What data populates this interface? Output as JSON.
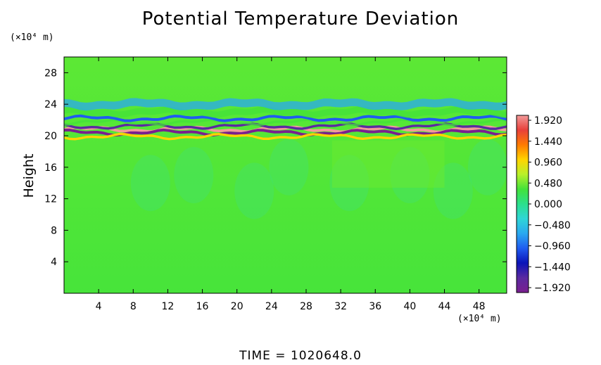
{
  "chart_data": {
    "type": "heatmap",
    "title": "Potential Temperature Deviation",
    "ylabel": "Height",
    "xunit": "(×10⁴ m)",
    "yunit": "(×10⁴ m)",
    "footer": "TIME  =  1020648.0",
    "xlim": [
      0,
      51.2
    ],
    "ylim": [
      0,
      30
    ],
    "xticks": [
      4,
      8,
      12,
      16,
      20,
      24,
      28,
      32,
      36,
      40,
      44,
      48
    ],
    "yticks": [
      4,
      8,
      12,
      16,
      20,
      24,
      28
    ],
    "colorbar": {
      "labels": [
        "1.920",
        "1.440",
        "0.960",
        "0.480",
        "0.000",
        "−0.480",
        "−0.960",
        "−1.440",
        "−1.920"
      ],
      "range": [
        -1.92,
        1.92
      ],
      "colors": [
        "#f29a9a",
        "#e8403a",
        "#ff7b00",
        "#ffd400",
        "#b9f02a",
        "#43e23a",
        "#2be08c",
        "#2fd6d6",
        "#2aa8f0",
        "#1f5cf0",
        "#0b14b8",
        "#5a2aa0",
        "#7a1f8f"
      ]
    },
    "field": {
      "background_value": 0.0,
      "layers": [
        {
          "y_center": 20.8,
          "thickness": 0.35,
          "value": 1.92
        },
        {
          "y_center": 20.4,
          "thickness": 0.35,
          "value": -1.92
        },
        {
          "y_center": 21.2,
          "thickness": 0.3,
          "value": -1.44
        },
        {
          "y_center": 19.9,
          "thickness": 0.3,
          "value": 0.96
        },
        {
          "y_center": 21.7,
          "thickness": 0.3,
          "value": 0.48
        },
        {
          "y_center": 22.2,
          "thickness": 0.35,
          "value": -0.96
        },
        {
          "y_center": 23.0,
          "thickness": 0.8,
          "value": 0.48
        },
        {
          "y_center": 24.0,
          "thickness": 1.0,
          "value": -0.48
        }
      ]
    }
  }
}
